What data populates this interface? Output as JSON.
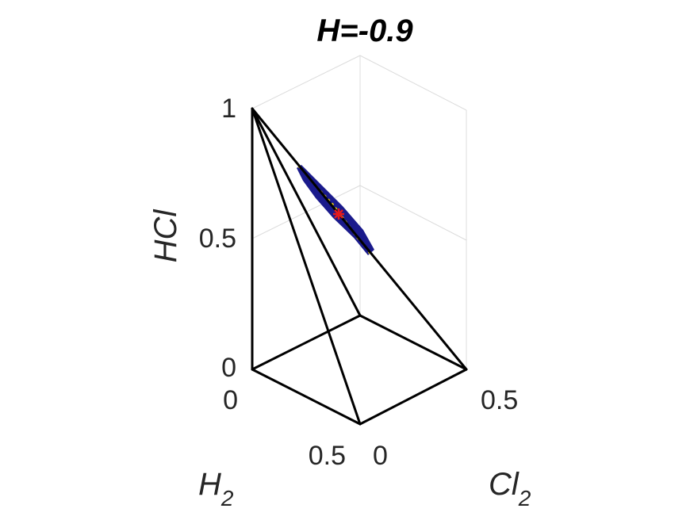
{
  "chart_data": {
    "type": "scatter",
    "title": "H=-0.9",
    "axes": {
      "x": {
        "label": "H",
        "label_sub": "2",
        "ticks": [
          "0",
          "0.5"
        ],
        "range": [
          0,
          0.5
        ]
      },
      "y": {
        "label": "Cl",
        "label_sub": "2",
        "ticks": [
          "0",
          "0.5"
        ],
        "range": [
          0,
          0.5
        ]
      },
      "z": {
        "label": "HCl",
        "ticks": [
          "0",
          "0.5",
          "1"
        ],
        "range": [
          0,
          1
        ]
      }
    },
    "grid": true,
    "edge_color": "#000000",
    "cluster_color": "#1a1a8c",
    "cluster_highlight_color": "#f2d60f",
    "marker_color": "#e41a1c",
    "marker": {
      "h2": 0.13,
      "cl2": 0.13,
      "hcl": 0.74
    }
  }
}
